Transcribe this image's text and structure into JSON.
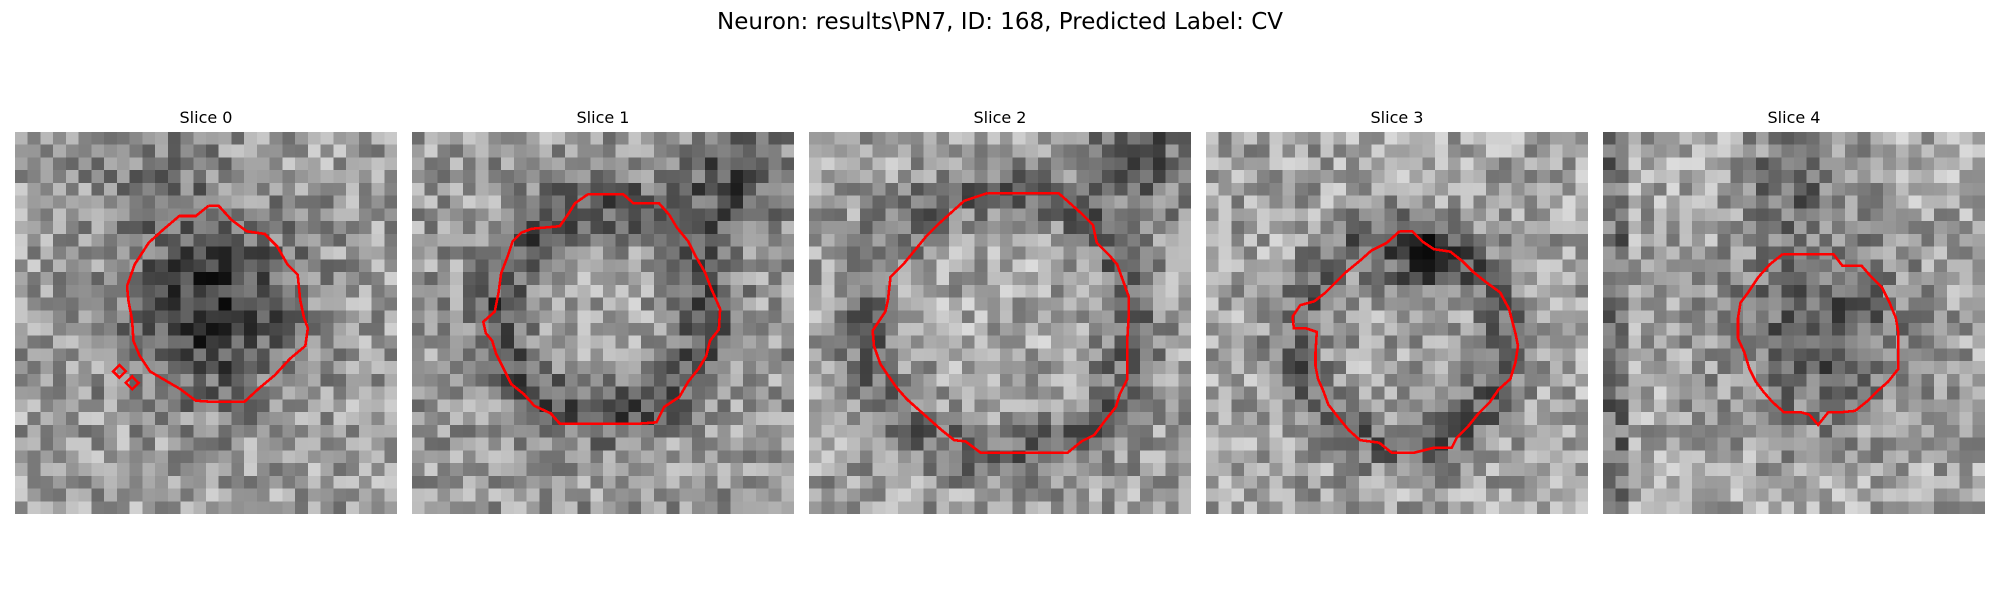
{
  "figure": {
    "title": "Neuron: results\\PN7, ID: 168, Predicted Label: CV"
  },
  "panels": [
    {
      "title": "Slice 0"
    },
    {
      "title": "Slice 1"
    },
    {
      "title": "Slice 2"
    },
    {
      "title": "Slice 3"
    },
    {
      "title": "Slice 4"
    }
  ],
  "colors": {
    "contour": "#ff0000",
    "background": "#ffffff"
  }
}
